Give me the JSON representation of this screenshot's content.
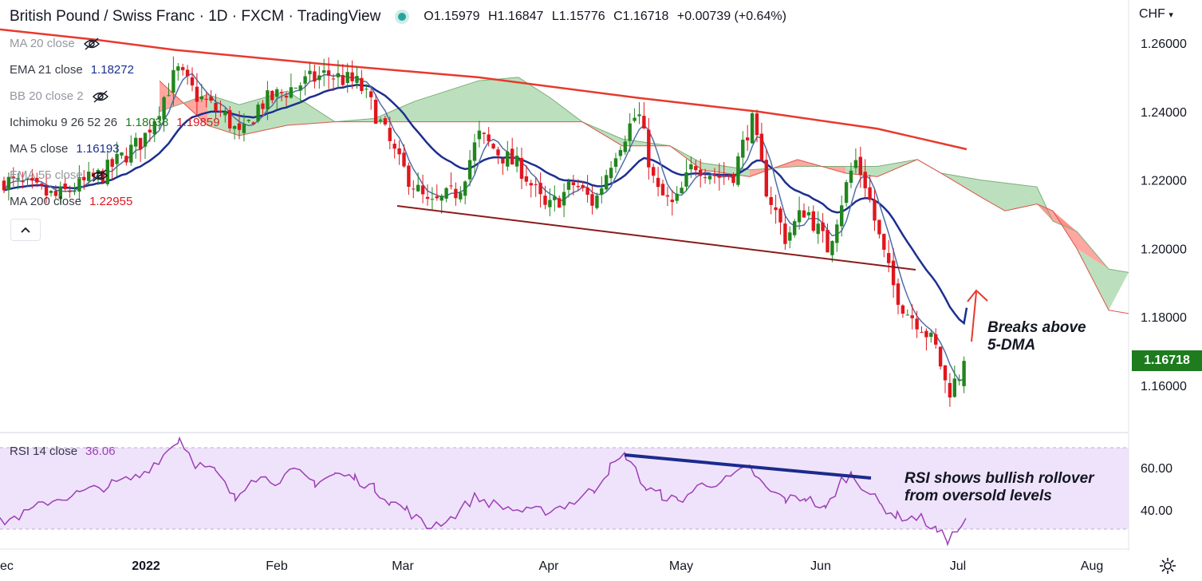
{
  "header": {
    "title": "British Pound / Swiss Franc · 1D · FXCM · TradingView",
    "open": "O1.15979",
    "high": "H1.16847",
    "low": "L1.15776",
    "close": "C1.16718",
    "change": "+0.00739 (+0.64%)"
  },
  "legend": {
    "ma20": "MA 20 close",
    "ema21": "EMA 21 close",
    "ema21_value": "1.18272",
    "bb": "BB 20 close 2",
    "ichimoku": "Ichimoku 9 26 52 26",
    "ichimoku_v1": "1.18038",
    "ichimoku_v2": "1.19859",
    "ma5": "MA 5 close",
    "ma5_value": "1.16193",
    "ema55": "EMA 55 close",
    "ma200": "MA 200 close",
    "ma200_value": "1.22955"
  },
  "rsi_legend": {
    "label": "RSI 14 close",
    "value": "36.06"
  },
  "axis": {
    "currency": "CHF",
    "last_price": "1.16718"
  },
  "annotations": {
    "breakout_line1": "Breaks above",
    "breakout_line2": "5-DMA",
    "rsi_line1": "RSI shows bullish rollover",
    "rsi_line2": "from oversold levels"
  },
  "colors": {
    "up": "#22851f",
    "down": "#e0161e",
    "ema21": "#1c2f8f",
    "ma5": "#4f6fa8",
    "ma200": "#e8392e",
    "cloud_bull": "#a5d6a7",
    "cloud_bear": "#ff8a80",
    "rsi_line": "#9c3fb5",
    "rsi_band": "#ede0fb",
    "trendline": "#8b1a1a",
    "rsi_trendline": "#1c2a8c"
  },
  "chart_data": [
    {
      "type": "candlestick",
      "x_axis_labels": [
        "ec",
        "2022",
        "Feb",
        "Mar",
        "Apr",
        "May",
        "Jun",
        "Jul",
        "Aug"
      ],
      "y_ticks": [
        "1.26000",
        "1.24000",
        "1.22000",
        "1.20000",
        "1.18000",
        "1.16000"
      ],
      "ylim": [
        1.148,
        1.268
      ],
      "last_close": 1.16718,
      "monthly_path": [
        {
          "label": "late Dec",
          "value": 1.22
        },
        {
          "label": "mid Jan",
          "value": 1.253
        },
        {
          "label": "late Jan",
          "value": 1.232
        },
        {
          "label": "mid Feb",
          "value": 1.25
        },
        {
          "label": "early Mar",
          "value": 1.212
        },
        {
          "label": "mid Mar",
          "value": 1.233
        },
        {
          "label": "early Apr",
          "value": 1.211
        },
        {
          "label": "late Apr",
          "value": 1.242
        },
        {
          "label": "mid May",
          "value": 1.212
        },
        {
          "label": "late May",
          "value": 1.24
        },
        {
          "label": "early Jun",
          "value": 1.2
        },
        {
          "label": "mid Jun",
          "value": 1.226
        },
        {
          "label": "late Jun",
          "value": 1.158
        },
        {
          "label": "early Jul",
          "value": 1.167
        }
      ]
    },
    {
      "type": "line",
      "title": "RSI 14 close",
      "y_ticks": [
        "60.00",
        "40.00"
      ],
      "ylim": [
        18,
        78
      ],
      "bands": [
        30,
        70
      ],
      "last_value": 36.06
    }
  ]
}
